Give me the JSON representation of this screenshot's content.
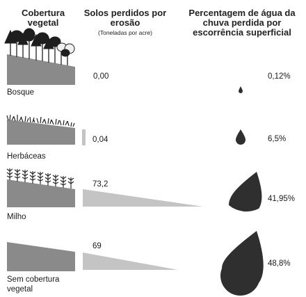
{
  "headers": {
    "cover": "Cobertura vegetal",
    "soil": "Solos perdidos por erosão",
    "soil_unit": "(Toneladas por acre)",
    "water": "Percentagem de água da chuva perdida por escorrência superficial"
  },
  "rows": [
    {
      "cover": "Bosque",
      "soil_lost": "0,00",
      "water_lost": "0,12%"
    },
    {
      "cover": "Herbáceas",
      "soil_lost": "0,04",
      "water_lost": "6,5%"
    },
    {
      "cover": "Milho",
      "soil_lost": "73,2",
      "water_lost": "41,95%"
    },
    {
      "cover": "Sem cobertura vegetal",
      "soil_lost": "69",
      "water_lost": "48,8%"
    }
  ],
  "colors": {
    "slope": "#8a8a8a",
    "soil_bar": "#c4c4c4",
    "drop": "#2f2f2f",
    "vegetation": "#1e1e1e"
  }
}
